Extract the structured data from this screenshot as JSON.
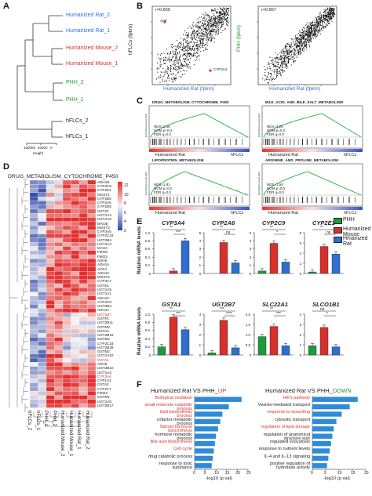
{
  "panels": {
    "a": "A",
    "b": "B",
    "c": "C",
    "d": "D",
    "e": "E",
    "f": "F"
  },
  "colors": {
    "blue": "#2e6fd0",
    "red": "#d6312c",
    "green": "#1f9a3b",
    "dark": "#222222",
    "heat_red": "#e32f2f",
    "heat_white": "#f4f4f4",
    "heat_blue": "#2e45a8"
  },
  "dendrogram": {
    "leaves": [
      {
        "label": "Humanized Rat_2",
        "color": "#2e6fd0"
      },
      {
        "label": "Humanized Rat_1",
        "color": "#2e6fd0"
      },
      {
        "label": "Humanized Mouse_2",
        "color": "#d6312c"
      },
      {
        "label": "Humanized Mouse_1",
        "color": "#d6312c"
      },
      {
        "label": "PHH_2",
        "color": "#1f9a3b"
      },
      {
        "label": "PHH_1",
        "color": "#1f9a3b"
      },
      {
        "label": "hFLCs_2",
        "color": "#222222"
      },
      {
        "label": "hFLCs_1",
        "color": "#222222"
      }
    ],
    "axis_ticks": [
      "150000",
      "40000",
      "0"
    ],
    "axis_label": "Height"
  },
  "scatter": {
    "left": {
      "r": "r=0.669",
      "ylabel": "hFLCs (fpkm)",
      "xlabel": "Humanized Rat (fpkm)",
      "afp": "AFP",
      "cyp": "CYP3A4"
    },
    "right": {
      "r": "r=0.867",
      "ylabel": "PHH (fpkm)",
      "xlabel": "Humanized Rat (fpkm)"
    }
  },
  "gsea": [
    {
      "title": "DRUG_METABOLISM_CYTOCHROME_P450",
      "nes": "NES=2.56",
      "nom": "NOM p=0.0",
      "fdr": "FDR q=0.0",
      "left": "Humanized Rat",
      "right": "hFLCs"
    },
    {
      "title": "BILE_ACID_AND_BILE_SALT_METABOLISM",
      "nes": "NES=2.29",
      "nom": "NOM p=0.0",
      "fdr": "FDR q=0.0",
      "left": "Humanized Rat",
      "right": "hFLCs"
    },
    {
      "title": "LIPOPROTEIN_METABOLISM",
      "nes": "NES=1.81",
      "nom": "NOM p=0.0",
      "fdr": "FDR q=0.0",
      "left": "Humanized Rat",
      "right": "hFLCs"
    },
    {
      "title": "ARGININE_AND_PROLINE_METABOLISM",
      "nes": "NES=1.94",
      "nom": "NOM p=0.0",
      "fdr": "FDR q=0.0",
      "left": "Humanized Rat",
      "right": "hFLCs"
    }
  ],
  "gsea_ylabel": "Enrichment score (ES)",
  "heatmap": {
    "title": "DRUG_METABOLISM_CYTOCHROME_P450",
    "scale_ticks": [
      "12",
      "10",
      "8",
      "6",
      "4",
      "2"
    ],
    "genes": [
      "ADH1B",
      "CYP2C8",
      "CYP2E1",
      "MGST1",
      "CYP2B6",
      "CYP2A6",
      "CYP2D6",
      "GSTZ1",
      "UGT1A4",
      "UGT1A6",
      "MAOB",
      "MGST3",
      "CYP3A5",
      "CYP2C19",
      "UGT2B4",
      "UGT2A3",
      "MAOA",
      "FMO5",
      "FMO3",
      "ADH6",
      "ADH1A",
      "AOX1",
      "ADH1C",
      "MGST2",
      "CYP3A7",
      "GSTK1",
      "UGT1A5",
      "UGT1A1",
      "ADH1C",
      "CYP2C9",
      "UGT2B4",
      "ADH1A",
      "UGT2B7",
      "GSTP1",
      "UGT2B11",
      "GSTM3",
      "GSTA4",
      "UGT2B15",
      "GSTM4",
      "CYP2C18",
      "UGT2B28",
      "GSTM2",
      "UGT1A10",
      "GSTA1",
      "ADH5",
      "UGT2B10",
      "UGT1A3",
      "CYP3A4",
      "CYP1A2",
      "GSTA2",
      "CYP2A7",
      "FMO3",
      "GSTM1",
      "UGT1A8",
      "UGT2B17"
    ],
    "red_genes": [
      32,
      43,
      47
    ],
    "columns": [
      "hFLCs_2",
      "hFLCs_1",
      "PHH_1",
      "PHH_2",
      "Humanized Mouse_2",
      "Humanized Mouse_1",
      "Humanized Rat_1",
      "Humanized Rat_2"
    ]
  },
  "bars": {
    "ylabel": "Relative mRNA levels",
    "legend": [
      {
        "label": "PHH",
        "color": "#1f9a3b"
      },
      {
        "label": "Humanized Mouse",
        "color": "#d6312c"
      },
      {
        "label": "Hmanized Rat",
        "color": "#2e6fd0"
      }
    ],
    "charts": [
      {
        "gene": "CYP3A4",
        "values": [
          0,
          0.06,
          0.8
        ],
        "ticks": [
          "0",
          "0.2",
          "0.4",
          "0.6",
          "0.8",
          "1.0"
        ],
        "max": 1.0,
        "sig": [
          "**",
          "***"
        ]
      },
      {
        "gene": "CYP2A6",
        "values": [
          0,
          3.8,
          1.3
        ],
        "ticks": [
          "0",
          "1",
          "2",
          "3",
          "4",
          "5"
        ],
        "max": 5,
        "sig": [
          "**",
          "ns"
        ]
      },
      {
        "gene": "CYP2C9",
        "values": [
          0.3,
          3.7,
          1.4
        ],
        "ticks": [
          "0",
          "1",
          "2",
          "3",
          "4",
          "5"
        ],
        "max": 5,
        "sig": [
          "**",
          "*"
        ]
      },
      {
        "gene": "CYP2E1",
        "values": [
          0.3,
          5.3,
          3.8
        ],
        "ticks": [
          "0",
          "2",
          "4",
          "6",
          "8"
        ],
        "max": 8,
        "sig": [
          "**",
          "ns"
        ]
      },
      {
        "gene": "GSTA1",
        "values": [
          0.2,
          0.93,
          0.62
        ],
        "ticks": [
          "0",
          "0.2",
          "0.4",
          "0.6",
          "0.8",
          "1.0"
        ],
        "max": 1.0,
        "sig": [
          "**",
          "***"
        ]
      },
      {
        "gene": "UGT2B7",
        "values": [
          0.2,
          3.4,
          0.7
        ],
        "ticks": [
          "0",
          "1",
          "2",
          "3",
          "4"
        ],
        "max": 4,
        "sig": [
          "***",
          "****"
        ]
      },
      {
        "gene": "SLC22A1",
        "values": [
          0.9,
          1.4,
          0.45
        ],
        "ticks": [
          "0",
          "0.5",
          "1.0",
          "1.5",
          "2.0"
        ],
        "max": 2.0,
        "sig": [
          "**",
          "***"
        ]
      },
      {
        "gene": "SLCO1B1",
        "values": [
          0.9,
          2.7,
          0.8
        ],
        "ticks": [
          "0",
          "1",
          "2",
          "3",
          "4"
        ],
        "max": 4,
        "sig": [
          "ns",
          "*"
        ]
      }
    ]
  },
  "go": {
    "up_title_prefix": "Humanized Rat VS PHH_",
    "up_title_suffix": "UP",
    "down_title_suffix": "DOWN",
    "xlabel": "-log10 (p val)",
    "up": {
      "ticks": [
        "0",
        "5",
        "10",
        "15",
        "20",
        "25"
      ],
      "max": 25,
      "items": [
        {
          "label": "Biological oxidation",
          "value": 22,
          "red": true
        },
        {
          "label": "small molecule catabolic process",
          "value": 16,
          "red": true
        },
        {
          "label": "lipid biosynthetic process",
          "value": 13,
          "red": true
        },
        {
          "label": "cofactor metabolic process",
          "value": 12,
          "red": false
        },
        {
          "label": "Steroid hormone biosynthesis",
          "value": 11,
          "red": true
        },
        {
          "label": "hormone metabolic process",
          "value": 10,
          "red": false
        },
        {
          "label": "Bile acid biosynthesis",
          "value": 9.5,
          "red": true
        },
        {
          "label": "Cell cycle",
          "value": 9,
          "red": true
        },
        {
          "label": "drug catabolic process",
          "value": 8.5,
          "red": false
        },
        {
          "label": "response to toxic substance",
          "value": 8,
          "red": false
        }
      ]
    },
    "down": {
      "ticks": [
        "0",
        "5",
        "10",
        "15",
        "20"
      ],
      "max": 20,
      "items": [
        {
          "label": "HIF1 pathway",
          "value": 17,
          "red": true
        },
        {
          "label": "Vesicle-mediated transport",
          "value": 14,
          "red": false
        },
        {
          "label": "response to wounding",
          "value": 11,
          "red": true
        },
        {
          "label": "cytosolic transport",
          "value": 9,
          "red": false
        },
        {
          "label": "regulation of lipid storage",
          "value": 8,
          "red": true
        },
        {
          "label": "regulation of anatomical structure size",
          "value": 7.5,
          "red": false
        },
        {
          "label": "regulated exocytosis",
          "value": 7,
          "red": false
        },
        {
          "label": "response to nutrient levels",
          "value": 6.5,
          "red": false
        },
        {
          "label": "IL-4 and IL-13 signaling",
          "value": 6,
          "red": false
        },
        {
          "label": "positive regulation of hydrolase activity",
          "value": 5.5,
          "red": false
        }
      ]
    }
  }
}
